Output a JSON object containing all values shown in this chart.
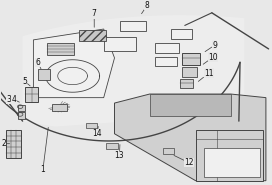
{
  "background_color": "#e8e8e8",
  "line_color": "#444444",
  "text_color": "#111111",
  "fill_light": "#d0d0d0",
  "fill_mid": "#b8b8b8",
  "fill_white": "#f0f0f0",
  "label_fontsize": 5.5,
  "figsize": [
    2.72,
    1.85
  ],
  "dpi": 100,
  "labels_info": [
    [
      1,
      0.175,
      0.685,
      0.155,
      0.92
    ],
    [
      2,
      0.032,
      0.775,
      0.01,
      0.775
    ],
    [
      3,
      0.052,
      0.545,
      0.03,
      0.53
    ],
    [
      4,
      0.068,
      0.545,
      0.048,
      0.53
    ],
    [
      5,
      0.108,
      0.455,
      0.088,
      0.43
    ],
    [
      6,
      0.148,
      0.36,
      0.135,
      0.325
    ],
    [
      7,
      0.345,
      0.13,
      0.345,
      0.055
    ],
    [
      8,
      0.52,
      0.055,
      0.54,
      0.01
    ],
    [
      9,
      0.755,
      0.265,
      0.79,
      0.23
    ],
    [
      10,
      0.748,
      0.335,
      0.785,
      0.295
    ],
    [
      11,
      0.73,
      0.43,
      0.768,
      0.385
    ],
    [
      12,
      0.64,
      0.84,
      0.695,
      0.88
    ],
    [
      13,
      0.44,
      0.78,
      0.438,
      0.84
    ],
    [
      14,
      0.36,
      0.68,
      0.355,
      0.72
    ]
  ]
}
